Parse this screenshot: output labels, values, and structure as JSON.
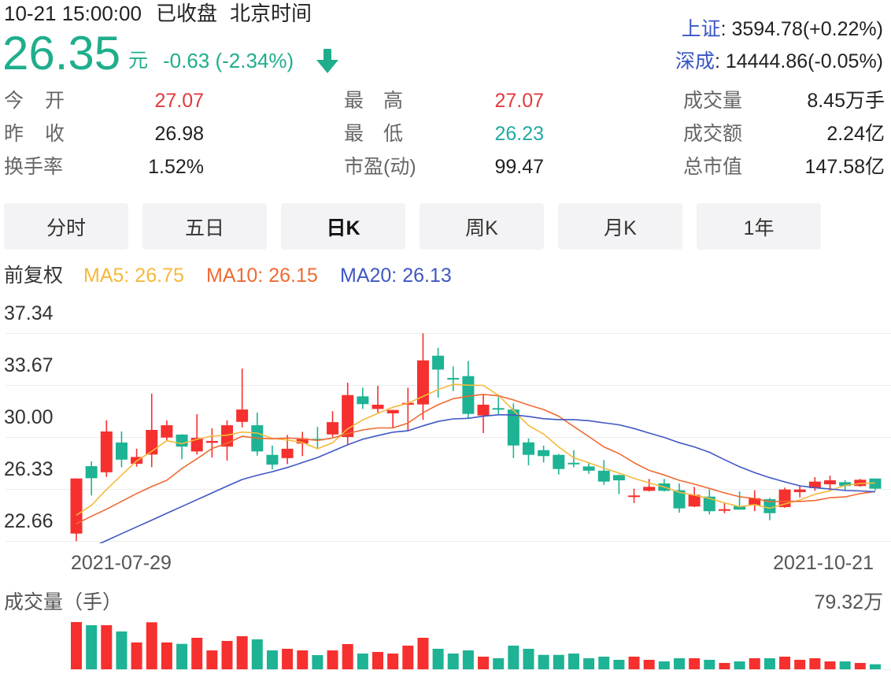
{
  "header": {
    "datetime": "10-21 15:00:00",
    "market_status": "已收盘",
    "timezone": "北京时间",
    "price": "26.35",
    "currency_unit": "元",
    "change": "-0.63 (-2.34%)",
    "direction_icon": "arrow-down-icon"
  },
  "indices": [
    {
      "label": "上证",
      "value": ": 3594.78(+0.22%)"
    },
    {
      "label": "深成",
      "value": ": 14444.86(-0.05%)"
    }
  ],
  "stats": [
    [
      {
        "label": "今 开",
        "value": "27.07"
      },
      {
        "label": "最 高",
        "value": "27.07"
      },
      {
        "label": "成交量",
        "value": "8.45万手"
      }
    ],
    [
      {
        "label": "昨 收",
        "value": "26.98"
      },
      {
        "label": "最 低",
        "value": "26.23"
      },
      {
        "label": "成交额",
        "value": "2.24亿"
      }
    ],
    [
      {
        "label": "换手率",
        "value": "1.52%"
      },
      {
        "label": "市盈(动)",
        "value": "99.47"
      },
      {
        "label": "总市值",
        "value": "147.58亿"
      }
    ]
  ],
  "tabs": [
    {
      "label": "分时",
      "active": false
    },
    {
      "label": "五日",
      "active": false
    },
    {
      "label": "日K",
      "active": true
    },
    {
      "label": "周K",
      "active": false
    },
    {
      "label": "月K",
      "active": false
    },
    {
      "label": "1年",
      "active": false
    }
  ],
  "indicators": {
    "adjust": "前复权",
    "ma5": "MA5: 26.75",
    "ma10": "MA10: 26.15",
    "ma20": "MA20: 26.13"
  },
  "axis": {
    "y_labels": [
      "37.34",
      "33.67",
      "30.00",
      "26.33",
      "22.66"
    ],
    "x_start": "2021-07-29",
    "x_end": "2021-10-21"
  },
  "volume": {
    "title": "成交量（手）",
    "max_label": "79.32万"
  },
  "colors": {
    "up": "#f5302e",
    "down": "#1db394",
    "price": "#1fae8c",
    "stat_up": "#e03a3e",
    "stat_down": "#22aaa2",
    "link": "#3a56c4",
    "ma5": "#f5b93b",
    "ma10": "#ef6a32",
    "ma20": "#3f57c4",
    "grid": "#ececec"
  },
  "chart_data": [
    {
      "type": "candlestick",
      "title": "日K（前复权）",
      "x_labels": [
        "2021-07-29",
        "2021-10-21"
      ],
      "yticks": [
        37.34,
        33.67,
        30.0,
        26.33,
        22.66
      ],
      "ylim": [
        22.66,
        37.34
      ],
      "grid": true,
      "legend": [
        "MA5: 26.75",
        "MA10: 26.15",
        "MA20: 26.13"
      ],
      "ohlc_order": [
        "open",
        "high",
        "low",
        "close"
      ],
      "ohlc": [
        [
          23.18,
          27.07,
          22.64,
          27.07
        ],
        [
          27.94,
          28.28,
          25.87,
          27.09
        ],
        [
          27.51,
          31.17,
          27.18,
          30.39
        ],
        [
          29.61,
          30.39,
          27.87,
          28.4
        ],
        [
          28.11,
          29.17,
          27.9,
          28.59
        ],
        [
          28.76,
          33.06,
          27.87,
          30.5
        ],
        [
          29.96,
          31.17,
          29.72,
          30.83
        ],
        [
          30.17,
          30.2,
          28.43,
          29.32
        ],
        [
          28.98,
          31.61,
          28.76,
          29.94
        ],
        [
          29.59,
          30.61,
          28.55,
          29.72
        ],
        [
          29.32,
          31.17,
          28.33,
          30.83
        ],
        [
          31.07,
          34.84,
          30.68,
          31.94
        ],
        [
          30.83,
          31.72,
          28.68,
          28.98
        ],
        [
          28.74,
          29.39,
          27.72,
          28.05
        ],
        [
          28.51,
          30.15,
          28.09,
          29.17
        ],
        [
          29.54,
          30.37,
          28.65,
          29.9
        ],
        [
          29.87,
          30.71,
          29.2,
          29.76
        ],
        [
          30.18,
          31.82,
          30.0,
          31.05
        ],
        [
          30.0,
          33.84,
          29.5,
          32.96
        ],
        [
          32.87,
          33.48,
          31.98,
          32.32
        ],
        [
          31.98,
          33.61,
          31.72,
          32.28
        ],
        [
          31.67,
          31.91,
          30.65,
          31.91
        ],
        [
          32.28,
          33.48,
          30.43,
          32.41
        ],
        [
          32.3,
          37.32,
          31.21,
          35.41
        ],
        [
          35.74,
          36.3,
          32.78,
          34.76
        ],
        [
          34.17,
          34.98,
          33.24,
          34.11
        ],
        [
          34.3,
          35.37,
          31.29,
          31.63
        ],
        [
          31.52,
          33.0,
          30.28,
          32.28
        ],
        [
          32.04,
          32.82,
          31.61,
          31.98
        ],
        [
          31.94,
          32.37,
          28.51,
          29.4
        ],
        [
          29.62,
          29.9,
          28.0,
          28.74
        ],
        [
          29.07,
          29.39,
          28.2,
          28.65
        ],
        [
          28.74,
          28.8,
          27.35,
          27.74
        ],
        [
          28.18,
          29.07,
          27.87,
          28.13
        ],
        [
          27.92,
          28.18,
          27.4,
          27.62
        ],
        [
          27.62,
          28.37,
          26.62,
          26.85
        ],
        [
          27.31,
          27.35,
          25.96,
          26.94
        ],
        [
          25.77,
          26.35,
          25.33,
          25.87
        ],
        [
          26.2,
          27.04,
          26.15,
          26.48
        ],
        [
          26.72,
          27.04,
          26.15,
          26.2
        ],
        [
          26.24,
          26.72,
          24.66,
          24.96
        ],
        [
          25.09,
          26.48,
          25.05,
          25.92
        ],
        [
          25.79,
          26.29,
          24.53,
          24.76
        ],
        [
          24.79,
          25.33,
          24.62,
          24.9
        ],
        [
          25.12,
          26.15,
          24.87,
          24.87
        ],
        [
          25.18,
          26.24,
          24.76,
          25.68
        ],
        [
          25.61,
          25.7,
          24.12,
          24.62
        ],
        [
          25.05,
          26.42,
          24.99,
          26.29
        ],
        [
          26.11,
          26.54,
          25.73,
          26.29
        ],
        [
          26.39,
          27.16,
          26.2,
          26.85
        ],
        [
          26.66,
          27.27,
          26.2,
          26.94
        ],
        [
          26.81,
          26.94,
          26.2,
          26.54
        ],
        [
          26.54,
          27.04,
          26.48,
          26.98
        ],
        [
          27.07,
          27.07,
          26.23,
          26.35
        ]
      ],
      "series": [
        {
          "name": "MA5",
          "color_key": "ma5",
          "values": [
            24.48,
            25.18,
            26.29,
            27.31,
            28.31,
            28.99,
            29.74,
            29.53,
            29.84,
            30.06,
            30.13,
            30.35,
            30.28,
            29.9,
            29.79,
            29.61,
            29.17,
            29.59,
            30.57,
            31.2,
            31.67,
            32.1,
            32.38,
            32.87,
            33.35,
            33.72,
            33.66,
            33.64,
            32.95,
            31.88,
            30.81,
            30.21,
            29.3,
            28.53,
            28.18,
            27.8,
            27.46,
            27.08,
            26.75,
            26.47,
            26.09,
            25.89,
            25.66,
            25.35,
            25.08,
            25.23,
            24.97,
            25.27,
            25.55,
            25.95,
            26.2,
            26.58,
            26.72,
            26.75
          ]
        },
        {
          "name": "MA10",
          "color_key": "ma10",
          "values": [
            23.88,
            24.4,
            24.9,
            25.45,
            26.01,
            26.5,
            26.94,
            27.77,
            28.46,
            29.19,
            29.56,
            30.05,
            29.91,
            29.87,
            29.93,
            29.87,
            29.76,
            29.93,
            30.24,
            30.5,
            30.64,
            30.64,
            30.98,
            31.72,
            32.28,
            32.7,
            32.88,
            33.01,
            32.91,
            32.62,
            32.26,
            31.94,
            31.47,
            30.74,
            30.03,
            29.3,
            28.83,
            28.19,
            27.64,
            27.32,
            26.94,
            26.67,
            26.37,
            26.05,
            25.78,
            25.66,
            25.43,
            25.47,
            25.45,
            25.51,
            25.71,
            25.77,
            26.0,
            26.15
          ]
        },
        {
          "name": "MA20",
          "color_key": "ma20",
          "values": [
            null,
            22.21,
            22.69,
            23.17,
            23.65,
            24.13,
            24.61,
            25.09,
            25.57,
            26.05,
            26.53,
            27.0,
            27.3,
            27.55,
            27.85,
            28.2,
            28.55,
            29.0,
            29.45,
            29.84,
            30.1,
            30.34,
            30.44,
            30.79,
            31.1,
            31.28,
            31.32,
            31.47,
            31.57,
            31.56,
            31.45,
            31.29,
            31.23,
            31.23,
            31.15,
            31.0,
            30.86,
            30.6,
            30.28,
            29.97,
            29.6,
            29.3,
            28.92,
            28.4,
            27.9,
            27.48,
            27.13,
            26.83,
            26.55,
            26.42,
            26.33,
            26.22,
            26.19,
            26.13
          ]
        }
      ]
    },
    {
      "type": "bar",
      "title": "成交量（手）",
      "unit": "万手",
      "ymax_label": "79.32万",
      "ylim": [
        0,
        79.32
      ],
      "values": [
        79.32,
        74.0,
        74.0,
        63.5,
        45.0,
        78.9,
        45.0,
        42.7,
        52.9,
        31.7,
        47.6,
        55.5,
        50.2,
        31.7,
        34.4,
        31.7,
        23.8,
        31.7,
        42.3,
        26.4,
        29.1,
        26.4,
        39.7,
        52.9,
        34.4,
        26.4,
        31.7,
        21.2,
        18.5,
        39.7,
        34.4,
        24.2,
        24.2,
        26.4,
        18.5,
        21.2,
        15.9,
        21.2,
        15.9,
        13.2,
        18.5,
        18.5,
        15.9,
        10.6,
        13.2,
        18.5,
        18.5,
        21.2,
        15.9,
        18.5,
        13.2,
        13.2,
        10.6,
        8.45
      ]
    }
  ]
}
